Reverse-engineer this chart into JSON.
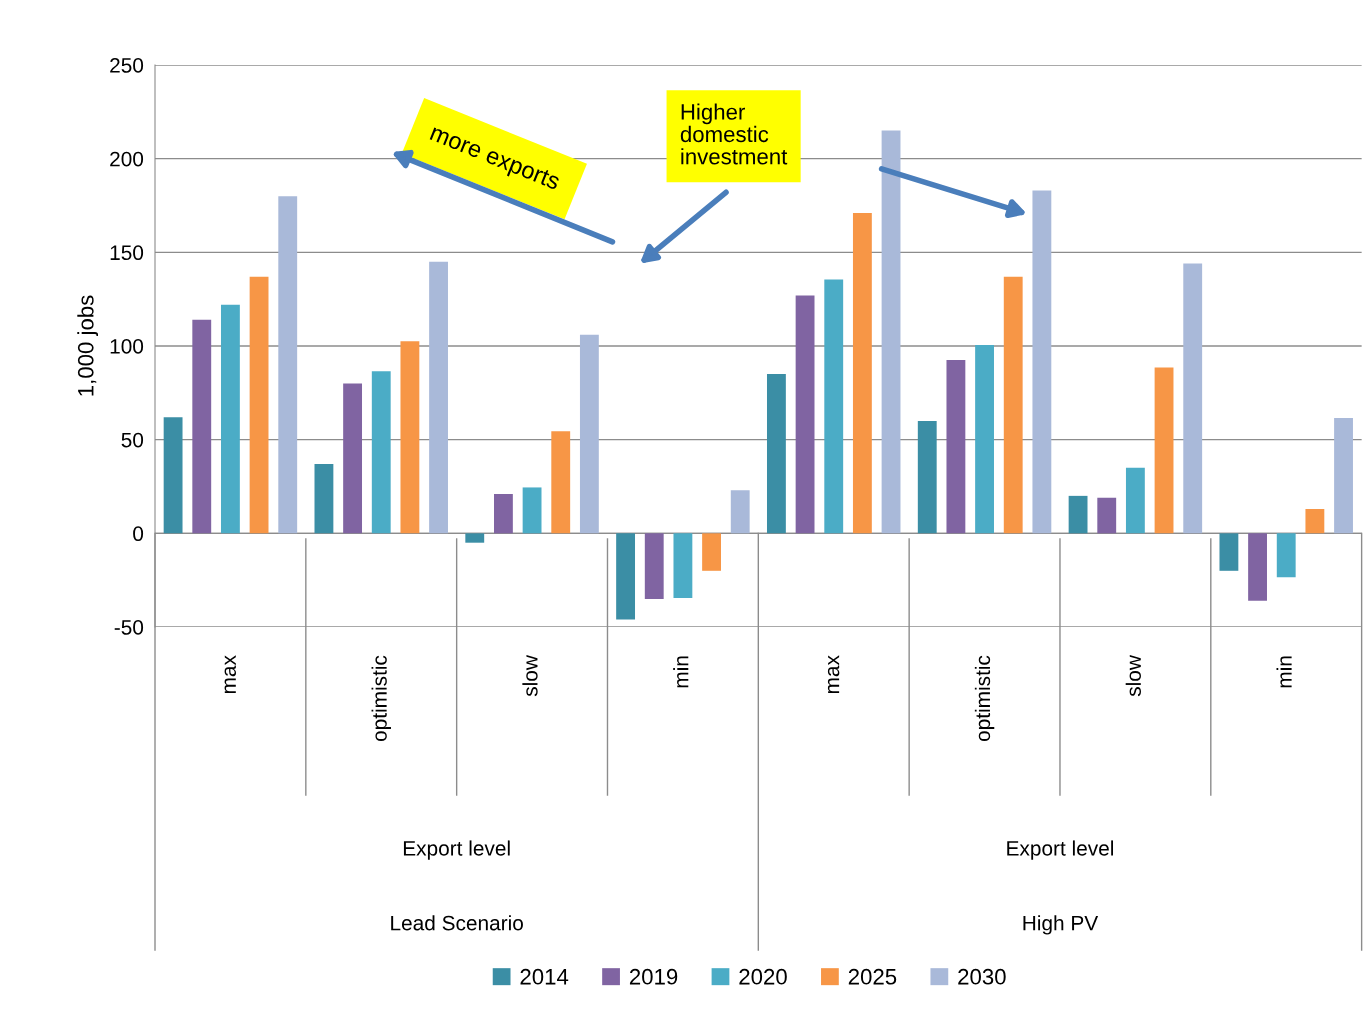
{
  "chart_data": {
    "type": "bar",
    "ylabel": "1,000 jobs",
    "categories": [
      "max",
      "optimistic",
      "slow",
      "min",
      "max",
      "optimistic",
      "slow",
      "min"
    ],
    "series": [
      {
        "name": "2014",
        "color": "#3b8ea5",
        "values": [
          62,
          37,
          -5,
          -46,
          85,
          60,
          20,
          -20
        ]
      },
      {
        "name": "2019",
        "color": "#8064a2",
        "values": [
          114,
          80,
          21,
          -35,
          127,
          92.5,
          19,
          -36
        ]
      },
      {
        "name": "2020",
        "color": "#4bacc6",
        "values": [
          122,
          86.5,
          24.5,
          -34.5,
          135.5,
          100.5,
          35,
          -23.5
        ]
      },
      {
        "name": "2025",
        "color": "#f79646",
        "values": [
          137,
          102.5,
          54.5,
          -20,
          171,
          137,
          88.5,
          13
        ]
      },
      {
        "name": "2030",
        "color": "#a9b9d9",
        "values": [
          180,
          145,
          106,
          23,
          215,
          183,
          144,
          61.5
        ]
      }
    ],
    "ylim": [
      -50,
      250
    ],
    "yticks": [
      -50,
      0,
      50,
      100,
      150,
      200,
      250
    ],
    "grid": "y",
    "legend": "bottom",
    "annotations": [
      "more exports",
      "Higher domestic investment",
      "Export level",
      "Export level",
      "Lead Scenario",
      "High PV"
    ]
  }
}
